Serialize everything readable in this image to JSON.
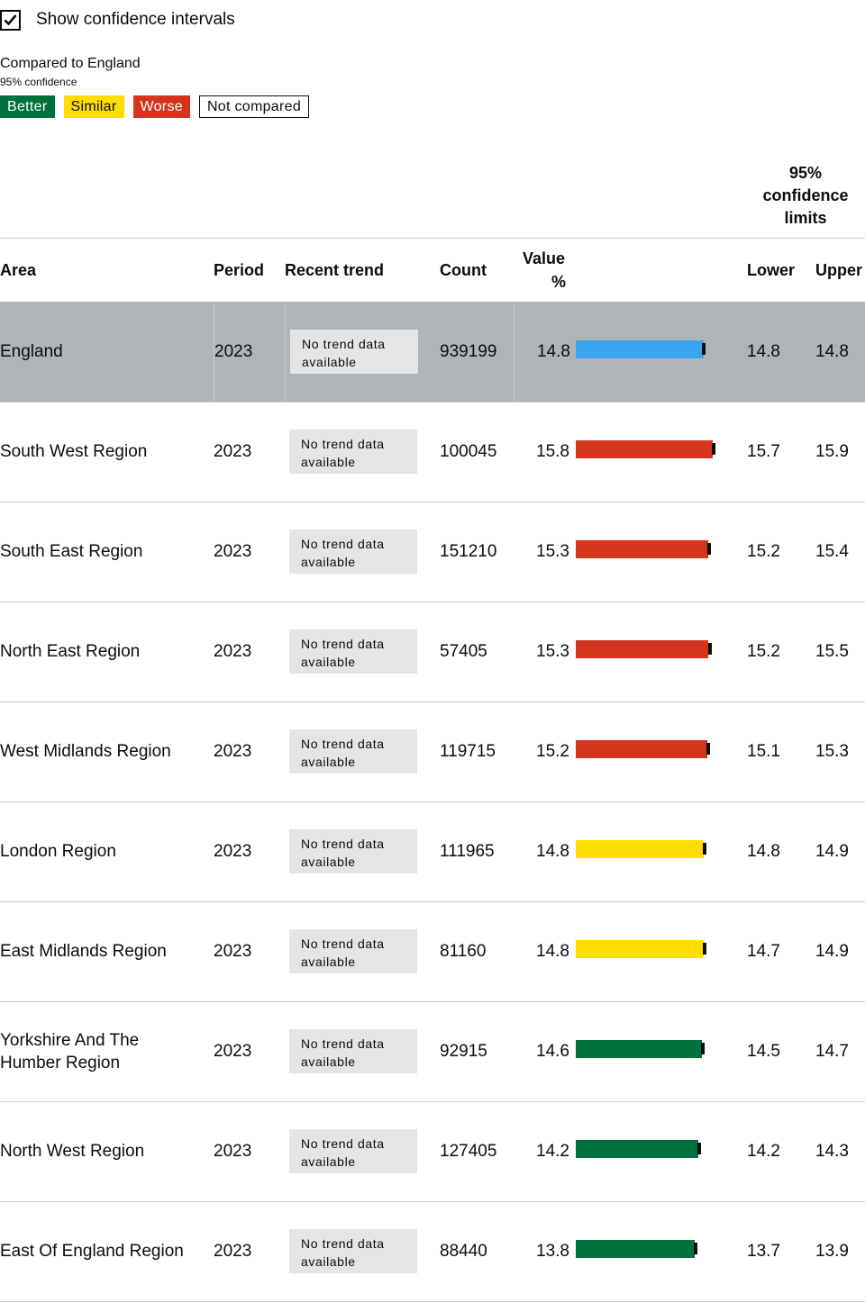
{
  "toggle": {
    "label": "Show confidence intervals",
    "checked": true
  },
  "legend": {
    "title": "Compared to England",
    "subtitle": "95% confidence",
    "better": "Better",
    "similar": "Similar",
    "worse": "Worse",
    "not_compared": "Not compared"
  },
  "colors": {
    "England": "#3ba4f0",
    "Better": "#00703c",
    "Similar": "#ffdd00",
    "Worse": "#d4351c"
  },
  "table": {
    "ci_heading": [
      "95%",
      "confidence",
      "limits"
    ],
    "headers": {
      "area": "Area",
      "period": "Period",
      "trend": "Recent trend",
      "count": "Count",
      "value_line1": "Value",
      "value_line2": "%",
      "lower": "Lower",
      "upper": "Upper"
    },
    "trend_text": [
      "No trend data",
      "available"
    ],
    "rows": [
      {
        "area": [
          "England"
        ],
        "period": "2023",
        "count": "939199",
        "value": "14.8",
        "lower": "14.8",
        "upper": "14.8",
        "status": "England"
      },
      {
        "area": [
          "South West Region"
        ],
        "period": "2023",
        "count": "100045",
        "value": "15.8",
        "lower": "15.7",
        "upper": "15.9",
        "status": "Worse"
      },
      {
        "area": [
          "South East Region"
        ],
        "period": "2023",
        "count": "151210",
        "value": "15.3",
        "lower": "15.2",
        "upper": "15.4",
        "status": "Worse"
      },
      {
        "area": [
          "North East Region"
        ],
        "period": "2023",
        "count": "57405",
        "value": "15.3",
        "lower": "15.2",
        "upper": "15.5",
        "status": "Worse"
      },
      {
        "area": [
          "West Midlands Region"
        ],
        "period": "2023",
        "count": "119715",
        "value": "15.2",
        "lower": "15.1",
        "upper": "15.3",
        "status": "Worse"
      },
      {
        "area": [
          "London Region"
        ],
        "period": "2023",
        "count": "111965",
        "value": "14.8",
        "lower": "14.8",
        "upper": "14.9",
        "status": "Similar"
      },
      {
        "area": [
          "East Midlands Region"
        ],
        "period": "2023",
        "count": "81160",
        "value": "14.8",
        "lower": "14.7",
        "upper": "14.9",
        "status": "Similar"
      },
      {
        "area": [
          "Yorkshire And The",
          "Humber Region"
        ],
        "period": "2023",
        "count": "92915",
        "value": "14.6",
        "lower": "14.5",
        "upper": "14.7",
        "status": "Better"
      },
      {
        "area": [
          "North West Region"
        ],
        "period": "2023",
        "count": "127405",
        "value": "14.2",
        "lower": "14.2",
        "upper": "14.3",
        "status": "Better"
      },
      {
        "area": [
          "East Of England Region"
        ],
        "period": "2023",
        "count": "88440",
        "value": "13.8",
        "lower": "13.7",
        "upper": "13.9",
        "status": "Better"
      }
    ]
  }
}
